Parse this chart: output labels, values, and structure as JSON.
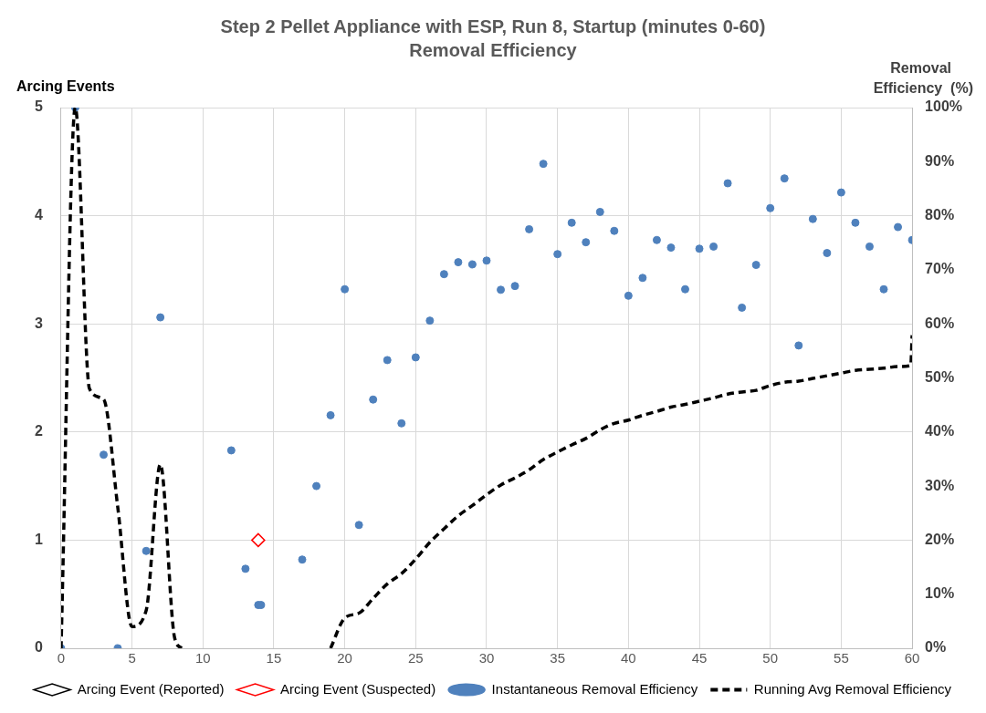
{
  "chart_data": {
    "type": "scatter",
    "title": "Step 2 Pellet Appliance with ESP, Run 8, Startup (minutes 0-60)",
    "subtitle": "Removal Efficiency",
    "ylabel": "Arcing Events",
    "y2label": "Removal Efficiency  (%)",
    "xlim": [
      0,
      60
    ],
    "xticks": [
      0,
      5,
      10,
      15,
      20,
      25,
      30,
      35,
      40,
      45,
      50,
      55,
      60
    ],
    "ylim": [
      0,
      5
    ],
    "yticks": [
      0,
      1,
      2,
      3,
      4,
      5
    ],
    "y2lim": [
      0,
      100
    ],
    "y2ticks": [
      {
        "value": 0,
        "label": "0%"
      },
      {
        "value": 10,
        "label": "10%"
      },
      {
        "value": 20,
        "label": "20%"
      },
      {
        "value": 30,
        "label": "30%"
      },
      {
        "value": 40,
        "label": "40%"
      },
      {
        "value": 50,
        "label": "50%"
      },
      {
        "value": 60,
        "label": "60%"
      },
      {
        "value": 70,
        "label": "70%"
      },
      {
        "value": 80,
        "label": "80%"
      },
      {
        "value": 90,
        "label": "90%"
      },
      {
        "value": 100,
        "label": "100%"
      }
    ],
    "grid": true,
    "legend": "bottom",
    "series": [
      {
        "name": "Arcing Event (Reported)",
        "type": "scatter",
        "marker": "diamond",
        "color": "#000000"
      },
      {
        "name": "Arcing Event (Suspected)",
        "type": "scatter",
        "marker": "diamond",
        "color": "#ff0000",
        "x": [
          13.9
        ],
        "values": [
          1
        ]
      },
      {
        "name": "Instantaneous Removal Efficiency",
        "type": "scatter",
        "marker": "circle",
        "color": "#4f81bd",
        "axis": "y2",
        "x": [
          0,
          1,
          3,
          4,
          6,
          7,
          12,
          13,
          13.9,
          14.1,
          17,
          18,
          19,
          20,
          21,
          22,
          23,
          24,
          25,
          26,
          27,
          28,
          29,
          30,
          31,
          32,
          33,
          34,
          35,
          36,
          37,
          38,
          39,
          40,
          41,
          42,
          43,
          44,
          45,
          46,
          47,
          48,
          49,
          50,
          51,
          52,
          53,
          54,
          55,
          56,
          57,
          58,
          59,
          60
        ],
        "values": [
          0,
          100,
          35.8,
          0,
          18,
          61.2,
          36.6,
          14.7,
          8,
          8,
          16.4,
          30,
          43.1,
          66.4,
          22.8,
          46,
          53.3,
          41.6,
          53.8,
          60.6,
          69.2,
          71.4,
          71,
          71.7,
          66.3,
          67,
          77.5,
          89.6,
          72.9,
          78.7,
          75.1,
          80.7,
          77.2,
          65.2,
          68.5,
          75.5,
          74.1,
          66.4,
          73.9,
          74.3,
          86,
          63,
          70.9,
          81.4,
          86.9,
          56,
          79.4,
          73.1,
          84.3,
          78.7,
          74.3,
          66.4,
          77.9,
          75.5
        ]
      },
      {
        "name": "Running Avg Removal Efficiency",
        "type": "line",
        "marker": "none",
        "line_style": "dashed",
        "color": "#000000",
        "axis": "y2",
        "x": [
          0,
          1,
          2,
          3,
          4,
          5,
          6,
          7,
          8,
          8.5,
          13,
          19,
          20,
          21,
          22,
          23,
          24,
          25,
          26,
          27,
          28,
          29,
          30,
          31,
          32,
          33,
          34,
          35,
          36,
          37,
          38,
          39,
          40,
          41,
          42,
          43,
          44,
          45,
          46,
          47,
          48,
          49,
          50,
          51,
          52,
          53,
          54,
          55,
          56,
          57,
          58,
          59,
          59.9,
          60
        ],
        "values": [
          0,
          100,
          48,
          46,
          26,
          4,
          7,
          34,
          2,
          0,
          null,
          0,
          5.6,
          6.5,
          9.2,
          11.9,
          13.8,
          16.5,
          19.6,
          22.1,
          24.5,
          26.4,
          28.4,
          30.2,
          31.5,
          33,
          34.9,
          36.3,
          37.6,
          38.8,
          40.4,
          41.6,
          42.2,
          43.1,
          43.8,
          44.6,
          45.1,
          45.7,
          46.3,
          47,
          47.4,
          47.7,
          48.6,
          49.2,
          49.4,
          49.9,
          50.4,
          50.9,
          51.4,
          51.6,
          51.8,
          52.1,
          52.3,
          57.9
        ]
      }
    ]
  }
}
